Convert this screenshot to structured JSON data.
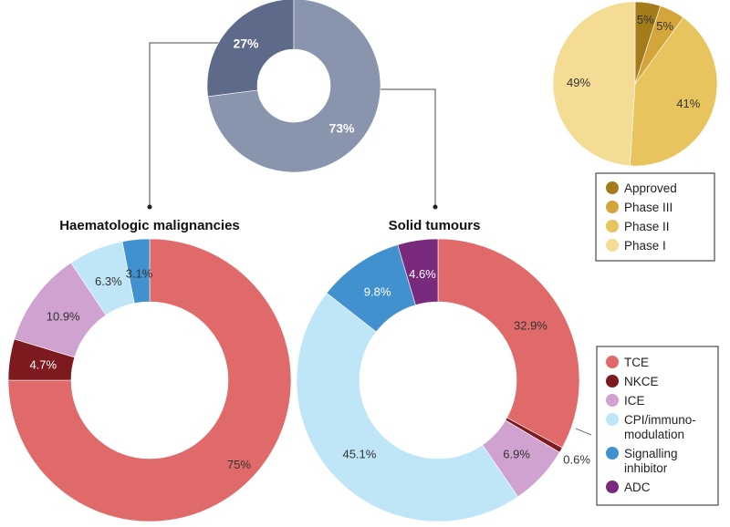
{
  "chart_data": [
    {
      "type": "pie",
      "id": "overall",
      "donut": true,
      "title": "",
      "slices": [
        {
          "name": "Haematologic malignancies",
          "value": 27,
          "label": "27%",
          "color": "#5d6a89"
        },
        {
          "name": "Solid tumours",
          "value": 73,
          "label": "73%",
          "color": "#8994ad"
        }
      ]
    },
    {
      "type": "pie",
      "id": "phase",
      "donut": false,
      "title": "",
      "slices": [
        {
          "name": "Approved",
          "value": 5,
          "label": "5%",
          "color": "#a57c1b"
        },
        {
          "name": "Phase III",
          "value": 5,
          "label": "5%",
          "color": "#d4a53a"
        },
        {
          "name": "Phase II",
          "value": 41,
          "label": "41%",
          "color": "#e8c45e"
        },
        {
          "name": "Phase I",
          "value": 49,
          "label": "49%",
          "color": "#f4dc95"
        }
      ],
      "legend": [
        "Approved",
        "Phase III",
        "Phase II",
        "Phase I"
      ],
      "legend_position": "right"
    },
    {
      "type": "pie",
      "id": "haem",
      "donut": true,
      "title": "Haematologic malignancies",
      "slices": [
        {
          "name": "TCE",
          "value": 75,
          "label": "75%",
          "color": "#e06a6a"
        },
        {
          "name": "NKCE",
          "value": 4.7,
          "label": "4.7%",
          "color": "#7d1a1f"
        },
        {
          "name": "ICE",
          "value": 10.9,
          "label": "10.9%",
          "color": "#cfa2cf"
        },
        {
          "name": "CPI/immuno-modulation",
          "value": 6.3,
          "label": "6.3%",
          "color": "#bfe6f7"
        },
        {
          "name": "Signalling inhibitor",
          "value": 3.1,
          "label": "3.1%",
          "color": "#4191cf"
        }
      ]
    },
    {
      "type": "pie",
      "id": "solid",
      "donut": true,
      "title": "Solid tumours",
      "slices": [
        {
          "name": "TCE",
          "value": 32.9,
          "label": "32.9%",
          "color": "#e06a6a"
        },
        {
          "name": "NKCE",
          "value": 0.6,
          "label": "0.6%",
          "color": "#7d1a1f"
        },
        {
          "name": "ICE",
          "value": 6.9,
          "label": "6.9%",
          "color": "#cfa2cf"
        },
        {
          "name": "CPI/immuno-modulation",
          "value": 45.1,
          "label": "45.1%",
          "color": "#bfe6f7"
        },
        {
          "name": "Signalling inhibitor",
          "value": 9.8,
          "label": "9.8%",
          "color": "#4191cf"
        },
        {
          "name": "ADC",
          "value": 4.6,
          "label": "4.6%",
          "color": "#7a2a7c"
        }
      ],
      "legend": [
        {
          "lines": [
            "TCE"
          ],
          "color": "#e06a6a"
        },
        {
          "lines": [
            "NKCE"
          ],
          "color": "#7d1a1f"
        },
        {
          "lines": [
            "ICE"
          ],
          "color": "#cfa2cf"
        },
        {
          "lines": [
            "CPI/immuno-",
            "modulation"
          ],
          "color": "#bfe6f7"
        },
        {
          "lines": [
            "Signalling",
            "inhibitor"
          ],
          "color": "#4191cf"
        },
        {
          "lines": [
            "ADC"
          ],
          "color": "#7a2a7c"
        }
      ],
      "legend_position": "right"
    }
  ]
}
